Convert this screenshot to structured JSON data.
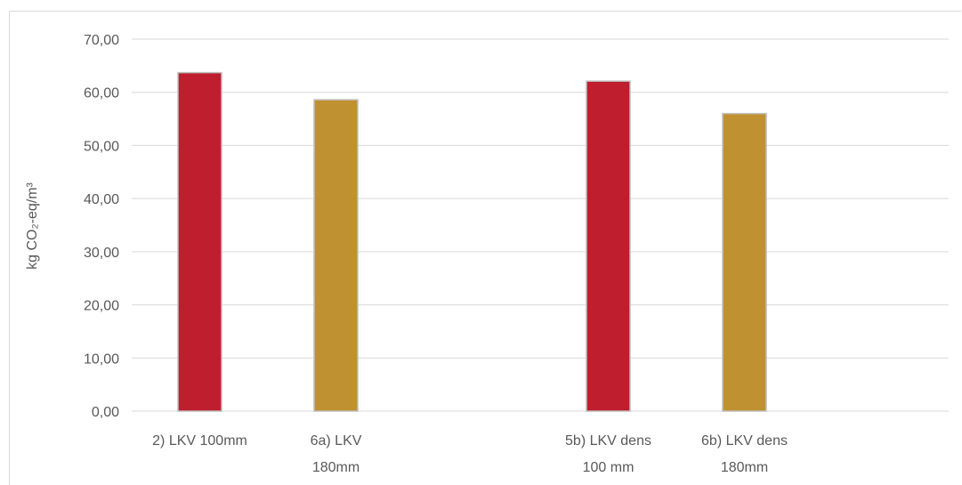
{
  "chart_data": {
    "type": "bar",
    "categories": [
      [
        "2) LKV 100mm"
      ],
      [
        "6a) LKV",
        "180mm"
      ],
      [
        ""
      ],
      [
        "5b) LKV dens",
        "100 mm"
      ],
      [
        "6b) LKV dens",
        "180mm"
      ],
      [
        ""
      ]
    ],
    "values": [
      63.7,
      58.6,
      null,
      62.1,
      56.0,
      null
    ],
    "bar_colors": [
      "#be1e2d",
      "#bf9130",
      null,
      "#be1e2d",
      "#bf9130",
      null
    ],
    "ylabel": "kg CO₂-eq/m³",
    "ylim": [
      0,
      70
    ],
    "yticks": [
      "0,00",
      "10,00",
      "20,00",
      "30,00",
      "40,00",
      "50,00",
      "60,00",
      "70,00"
    ],
    "ytick_values": [
      0,
      10,
      20,
      30,
      40,
      50,
      60,
      70
    ],
    "grid": true,
    "legend": "none"
  }
}
